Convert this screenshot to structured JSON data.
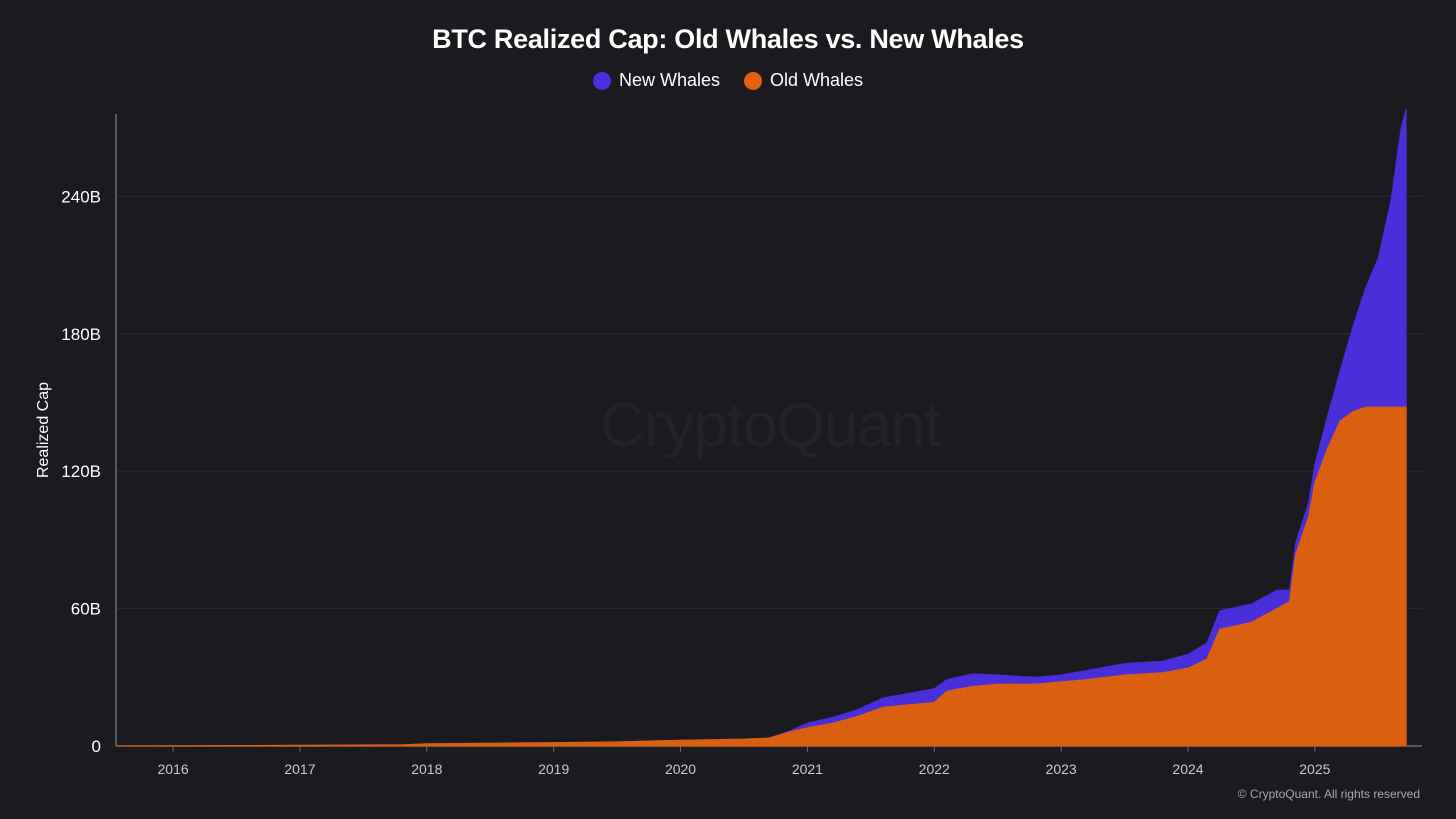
{
  "chart_data": {
    "type": "area",
    "stacked": true,
    "title": "BTC Realized Cap: Old Whales vs. New Whales",
    "ylabel": "Realized Cap",
    "xlabel": "",
    "ylim": [
      0,
      276
    ],
    "y_ticks": [
      "0",
      "60B",
      "120B",
      "180B",
      "240B"
    ],
    "y_tick_values": [
      0,
      60,
      120,
      180,
      240
    ],
    "x_ticks": [
      "2016",
      "2017",
      "2018",
      "2019",
      "2020",
      "2021",
      "2022",
      "2023",
      "2024",
      "2025"
    ],
    "x_tick_values": [
      2016,
      2017,
      2018,
      2019,
      2020,
      2021,
      2022,
      2023,
      2024,
      2025
    ],
    "xlim": [
      2015.55,
      2025.75
    ],
    "grid": true,
    "legend_position": "top-center",
    "units": "USD billions",
    "series": [
      {
        "name": "New Whales",
        "color": "#4a2fe0",
        "x": [
          2015.55,
          2017.8,
          2018.0,
          2018.5,
          2019.0,
          2019.5,
          2020.0,
          2020.5,
          2020.7,
          2020.85,
          2021.0,
          2021.2,
          2021.4,
          2021.6,
          2021.8,
          2022.0,
          2022.1,
          2022.3,
          2022.5,
          2022.8,
          2023.0,
          2023.2,
          2023.5,
          2023.8,
          2024.0,
          2024.15,
          2024.25,
          2024.5,
          2024.7,
          2024.8,
          2024.85,
          2024.95,
          2025.0,
          2025.1,
          2025.2,
          2025.3,
          2025.4,
          2025.5,
          2025.6,
          2025.65,
          2025.68,
          2025.72
        ],
        "values": [
          0,
          0,
          0,
          0,
          0,
          0,
          0,
          0,
          0,
          0.3,
          2,
          2.5,
          3,
          4,
          5,
          6,
          5,
          5.5,
          4,
          3,
          3,
          4,
          5,
          5,
          6,
          7,
          8,
          8,
          8,
          5,
          5,
          6,
          8,
          14,
          22,
          37,
          52,
          65,
          90,
          110,
          122,
          130
        ]
      },
      {
        "name": "Old Whales",
        "color": "#e0620e",
        "x": [
          2015.55,
          2017.8,
          2018.0,
          2018.5,
          2019.0,
          2019.5,
          2020.0,
          2020.5,
          2020.7,
          2020.85,
          2021.0,
          2021.2,
          2021.4,
          2021.6,
          2021.8,
          2022.0,
          2022.1,
          2022.3,
          2022.5,
          2022.8,
          2023.0,
          2023.2,
          2023.5,
          2023.8,
          2024.0,
          2024.15,
          2024.25,
          2024.5,
          2024.7,
          2024.8,
          2024.85,
          2024.95,
          2025.0,
          2025.1,
          2025.2,
          2025.3,
          2025.4,
          2025.5,
          2025.6,
          2025.65,
          2025.68,
          2025.72
        ],
        "values": [
          0,
          0.5,
          1,
          1.2,
          1.5,
          1.8,
          2.5,
          3,
          3.5,
          6,
          8,
          10,
          13,
          17,
          18,
          19,
          24,
          26,
          27,
          27,
          28,
          29,
          31,
          32,
          34,
          38,
          51,
          54,
          60,
          63,
          84,
          100,
          115,
          130,
          142,
          146,
          148,
          148,
          148,
          148,
          148,
          148
        ]
      }
    ]
  },
  "watermark": "CryptoQuant",
  "copyright": "© CryptoQuant. All rights reserved"
}
